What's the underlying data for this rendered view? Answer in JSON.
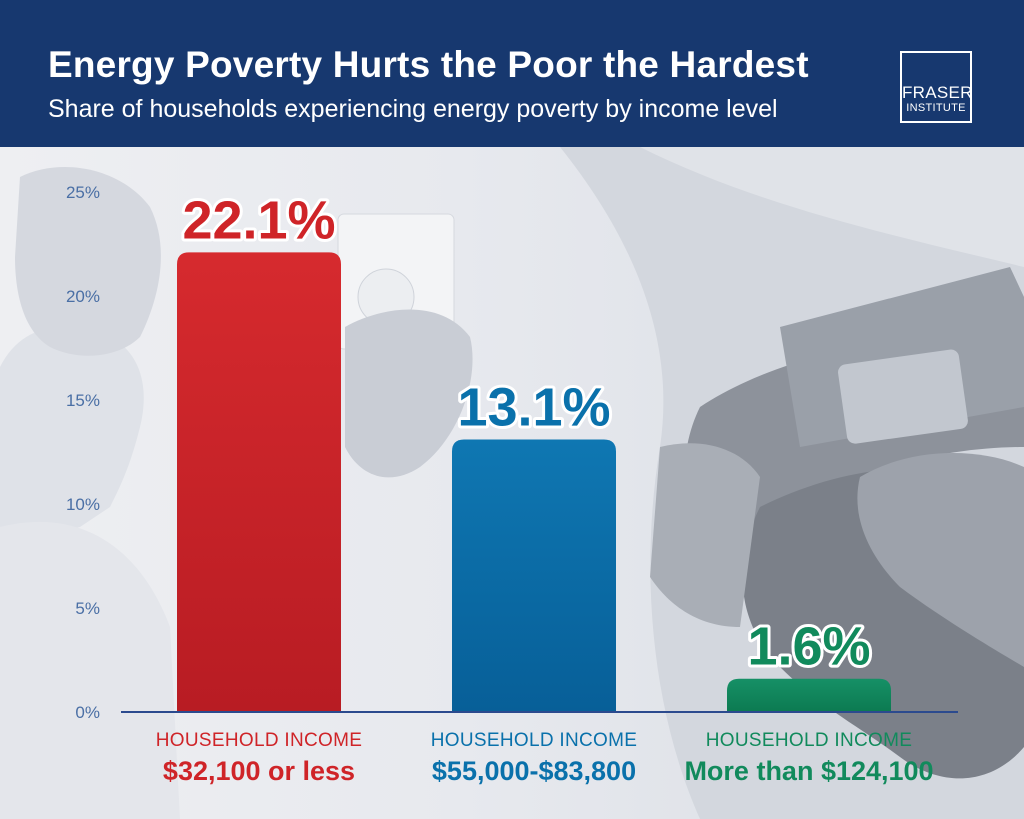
{
  "header": {
    "title": "Energy Poverty Hurts the Poor the Hardest",
    "subtitle": "Share of households experiencing energy poverty by income level",
    "logo_line1": "FRASER",
    "logo_line2": "INSTITUTE",
    "background_color": "#17386f"
  },
  "chart_data": {
    "type": "bar",
    "title": "Energy Poverty Hurts the Poor the Hardest",
    "subtitle": "Share of households experiencing energy poverty by income level",
    "xlabel": "",
    "ylabel": "",
    "ylim": [
      0,
      25
    ],
    "y_ticks": [
      "0%",
      "5%",
      "10%",
      "15%",
      "20%",
      "25%"
    ],
    "y_tick_values": [
      0,
      5,
      10,
      15,
      20,
      25
    ],
    "grid": false,
    "legend": "none",
    "categories": [
      "$32,100 or less",
      "$55,000-$83,800",
      "More than $124,100"
    ],
    "category_prefixes": [
      "HOUSEHOLD INCOME",
      "HOUSEHOLD INCOME",
      "HOUSEHOLD INCOME"
    ],
    "values": [
      22.1,
      13.1,
      1.6
    ],
    "data_labels": [
      "22.1%",
      "13.1%",
      "1.6%"
    ],
    "colors": [
      "#cf2428",
      "#0a71ab",
      "#118a5c"
    ]
  }
}
